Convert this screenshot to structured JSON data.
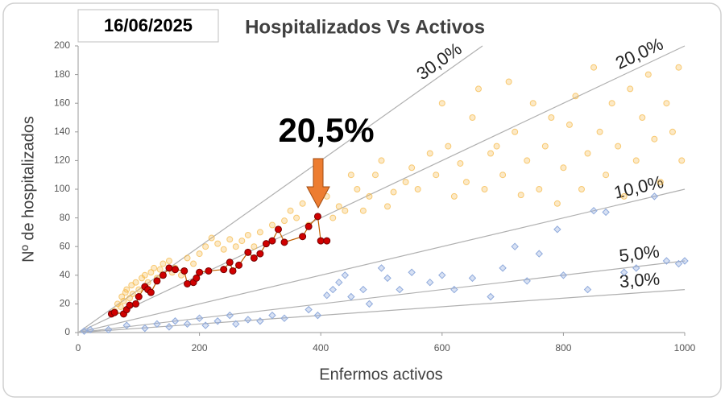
{
  "chart_data": {
    "type": "scatter",
    "title": "Hospitalizados Vs Activos",
    "date": "16/06/2025",
    "annotation": "20,5%",
    "xlabel": "Enfermos activos",
    "ylabel": "Nº de hospitalizados",
    "xlim": [
      0,
      1000
    ],
    "ylim": [
      0,
      200
    ],
    "xticks": [
      0,
      200,
      400,
      600,
      800,
      1000
    ],
    "yticks": [
      0,
      20,
      40,
      60,
      80,
      100,
      120,
      140,
      160,
      180,
      200
    ],
    "ratio_lines": [
      {
        "value": 30,
        "label": "30,0%"
      },
      {
        "value": 20,
        "label": "20,0%"
      },
      {
        "value": 10,
        "label": "10,0%"
      },
      {
        "value": 5,
        "label": "5,0%"
      },
      {
        "value": 3,
        "label": "3,0%"
      }
    ],
    "series": [
      {
        "color": "#f5b642",
        "marker": "circle",
        "x": [
          60,
          65,
          70,
          72,
          75,
          78,
          80,
          85,
          88,
          90,
          95,
          100,
          105,
          110,
          115,
          120,
          125,
          130,
          135,
          140,
          150,
          155,
          160,
          170,
          180,
          190,
          200,
          210,
          220,
          230,
          240,
          250,
          260,
          270,
          280,
          290,
          300,
          320,
          340,
          350,
          360,
          370,
          380,
          410,
          420,
          430,
          440,
          450,
          460,
          470,
          480,
          490,
          500,
          510,
          520,
          540,
          550,
          560,
          580,
          590,
          600,
          610,
          620,
          630,
          640,
          650,
          660,
          670,
          680,
          690,
          700,
          710,
          720,
          730,
          740,
          750,
          760,
          770,
          780,
          790,
          800,
          810,
          820,
          830,
          840,
          850,
          860,
          870,
          880,
          890,
          900,
          910,
          920,
          930,
          940,
          950,
          960,
          970,
          980,
          990,
          995
        ],
        "values": [
          15,
          20,
          18,
          25,
          22,
          28,
          30,
          24,
          33,
          27,
          35,
          30,
          38,
          40,
          35,
          42,
          45,
          38,
          44,
          48,
          50,
          42,
          45,
          40,
          52,
          48,
          55,
          60,
          66,
          62,
          58,
          65,
          60,
          64,
          68,
          60,
          70,
          75,
          78,
          85,
          80,
          90,
          75,
          95,
          80,
          88,
          85,
          110,
          100,
          85,
          95,
          110,
          120,
          88,
          98,
          105,
          115,
          100,
          125,
          110,
          160,
          130,
          95,
          118,
          105,
          150,
          170,
          100,
          125,
          130,
          110,
          175,
          140,
          96,
          120,
          160,
          100,
          130,
          150,
          90,
          115,
          145,
          165,
          100,
          125,
          185,
          140,
          110,
          160,
          130,
          95,
          170,
          120,
          150,
          180,
          135,
          105,
          160,
          140,
          185,
          120
        ]
      },
      {
        "color": "#8faadc",
        "marker": "diamond",
        "x": [
          10,
          20,
          50,
          80,
          110,
          130,
          150,
          160,
          180,
          200,
          210,
          230,
          250,
          260,
          280,
          300,
          320,
          340,
          380,
          395,
          410,
          420,
          430,
          440,
          450,
          470,
          480,
          500,
          510,
          530,
          550,
          580,
          600,
          620,
          650,
          680,
          700,
          720,
          740,
          760,
          790,
          800,
          840,
          850,
          870,
          900,
          920,
          950,
          970,
          990,
          1000
        ],
        "values": [
          1,
          2,
          2,
          5,
          3,
          6,
          4,
          8,
          6,
          10,
          5,
          8,
          12,
          6,
          9,
          8,
          12,
          10,
          16,
          12,
          26,
          30,
          35,
          40,
          25,
          30,
          20,
          45,
          38,
          30,
          42,
          35,
          40,
          30,
          38,
          25,
          45,
          60,
          36,
          55,
          72,
          40,
          30,
          85,
          84,
          42,
          45,
          95,
          50,
          48,
          50
        ]
      },
      {
        "color": "#d00000",
        "marker": "circle",
        "line": true,
        "x": [
          55,
          60,
          75,
          80,
          85,
          95,
          100,
          110,
          115,
          120,
          130,
          140,
          150,
          160,
          175,
          180,
          190,
          195,
          200,
          215,
          240,
          250,
          255,
          265,
          280,
          290,
          300,
          310,
          320,
          330,
          340,
          370,
          380,
          395,
          400,
          410
        ],
        "values": [
          13,
          14,
          13,
          16,
          19,
          20,
          25,
          32,
          30,
          28,
          36,
          40,
          45,
          44,
          43,
          34,
          35,
          38,
          42,
          43,
          44,
          49,
          43,
          47,
          56,
          52,
          55,
          62,
          64,
          72,
          63,
          67,
          74,
          81,
          64,
          64
        ]
      }
    ]
  }
}
